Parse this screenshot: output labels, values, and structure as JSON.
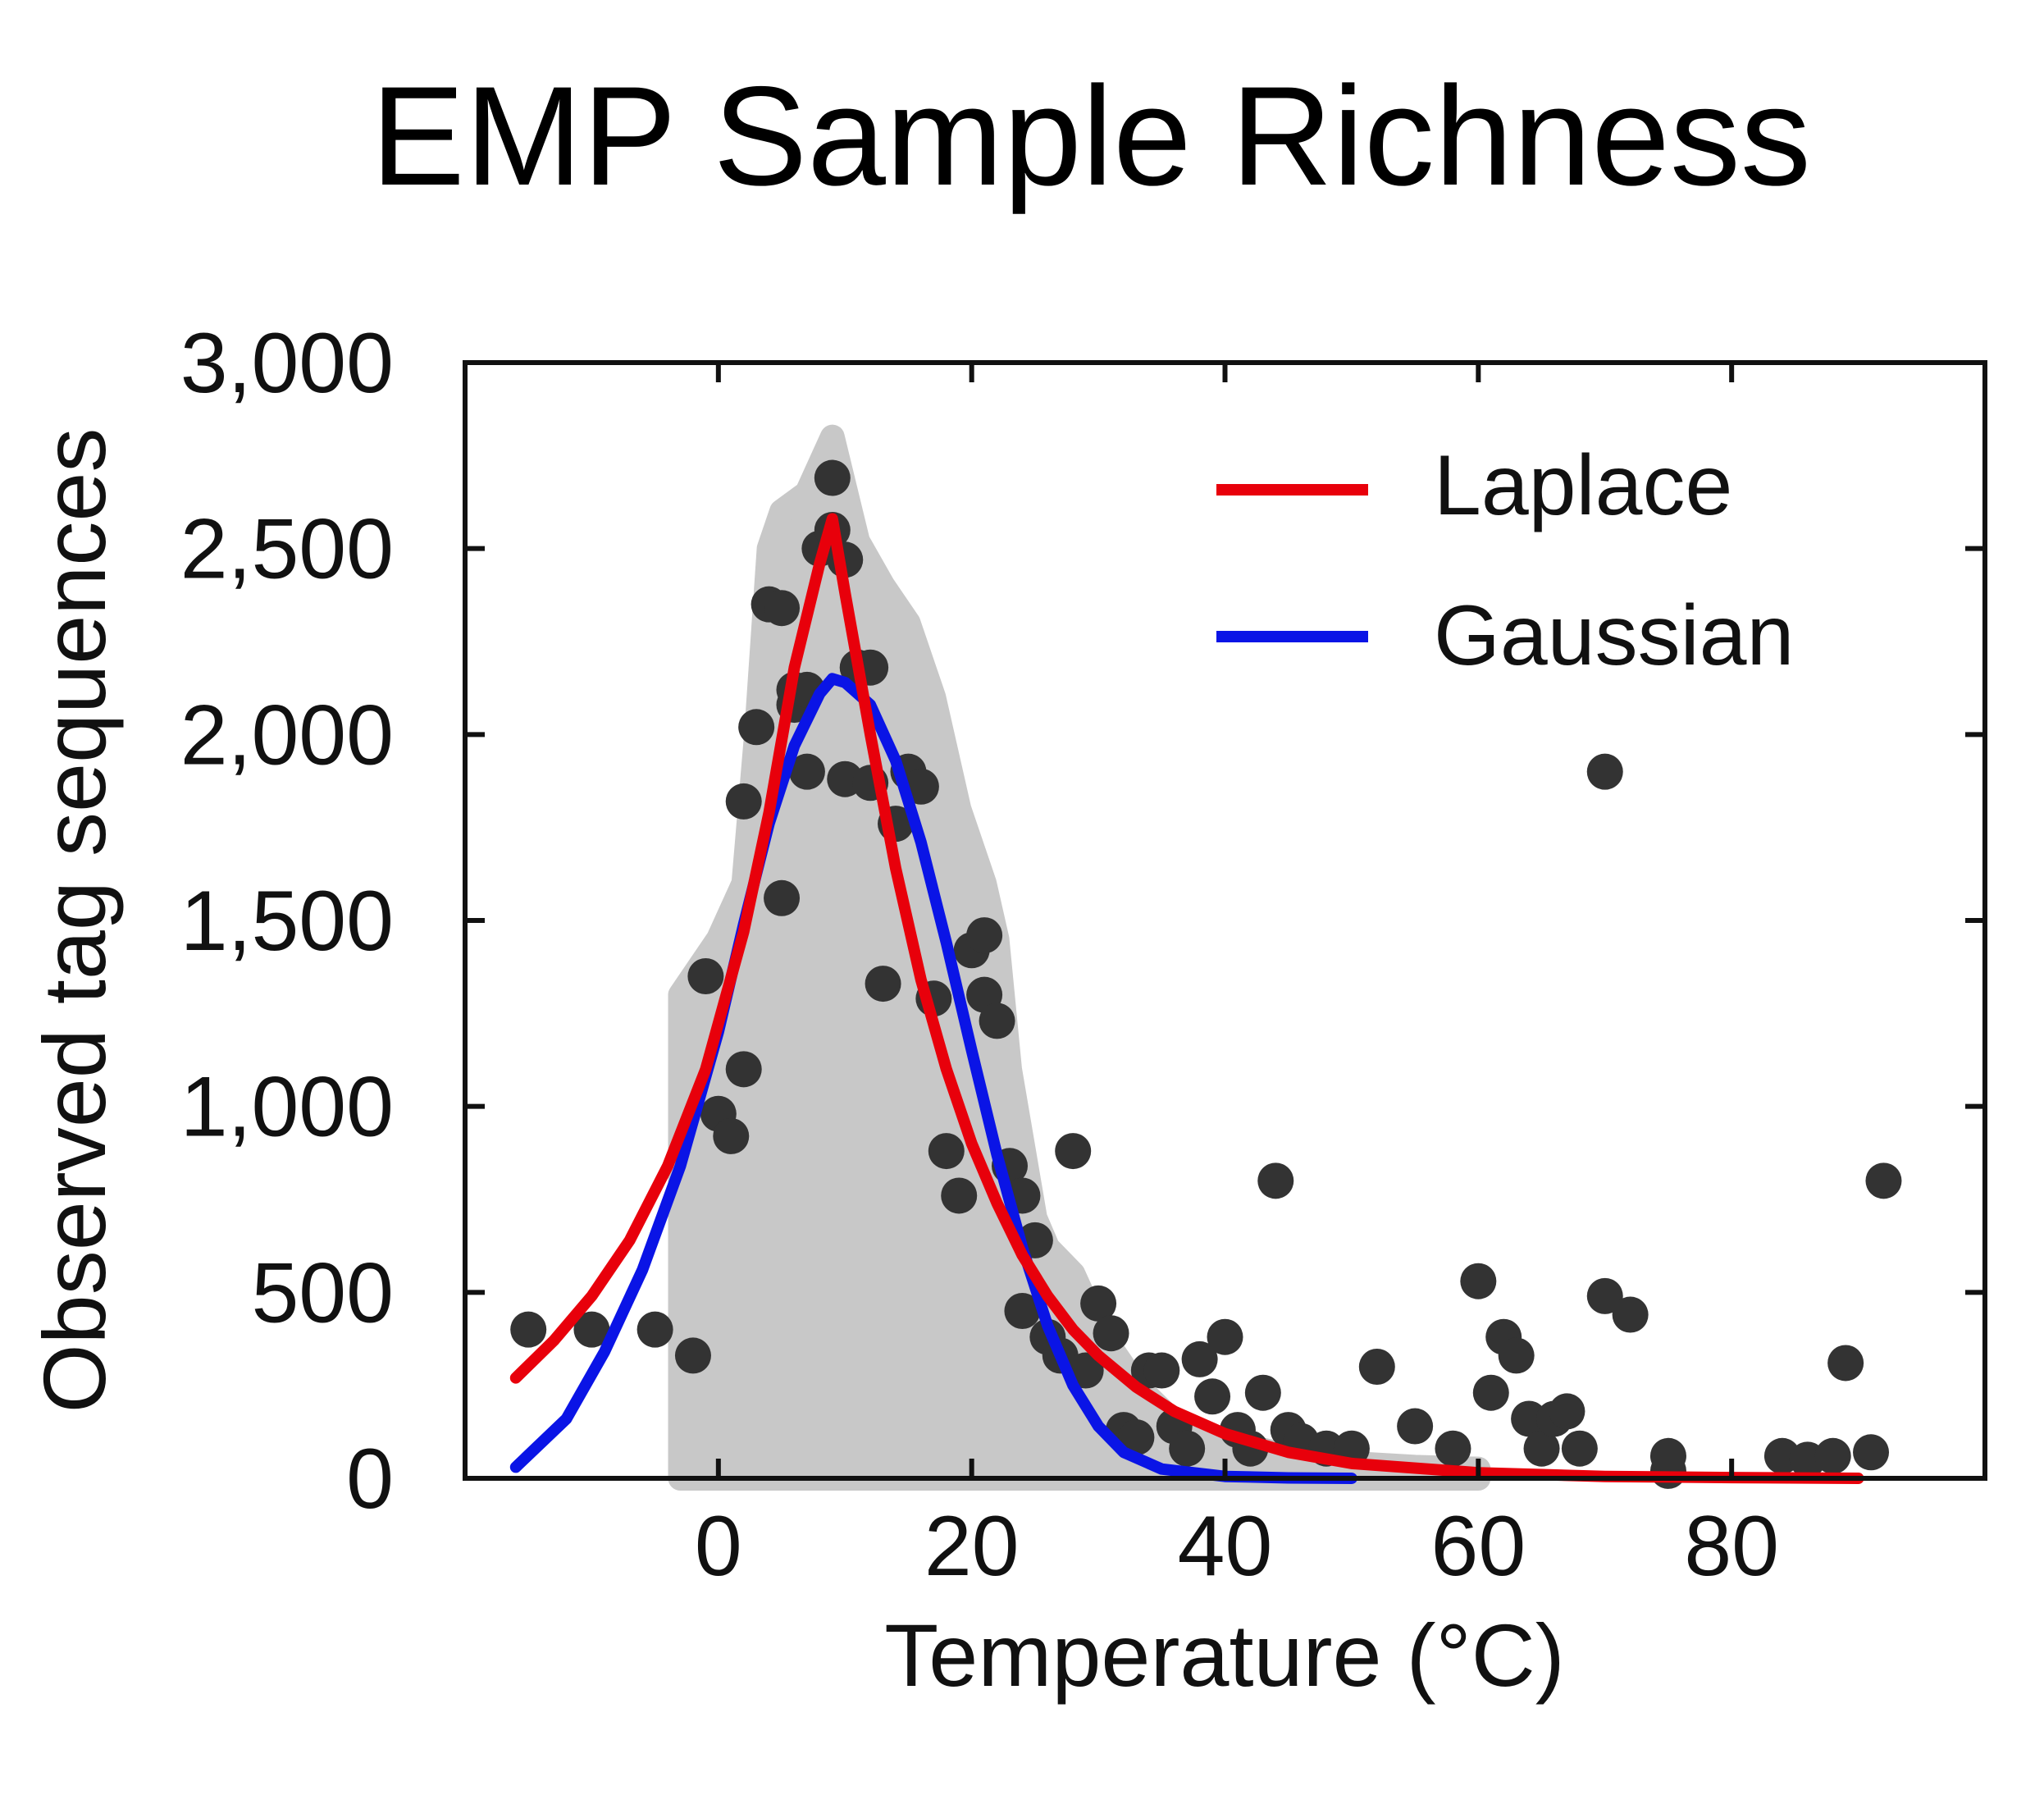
{
  "chart_data": {
    "type": "scatter",
    "title": "EMP Sample Richness",
    "xlabel": "Temperature (°C)",
    "ylabel": "Observed tag sequences",
    "xlim": [
      -20,
      100
    ],
    "ylim": [
      0,
      3000
    ],
    "xticks": [
      0,
      20,
      40,
      60,
      80
    ],
    "xtick_labels": [
      "0",
      "20",
      "40",
      "60",
      "80"
    ],
    "yticks": [
      0,
      500,
      1000,
      1500,
      2000,
      2500,
      3000
    ],
    "ytick_labels": [
      "0",
      "500",
      "1,000",
      "1,500",
      "2,000",
      "2,500",
      "3,000"
    ],
    "grid": false,
    "legend_position": "top-right",
    "colors": {
      "all_samples": "#c8c8c8",
      "binned_points": "#333333",
      "laplace": "#e8000b",
      "gaussian": "#0a14e6"
    },
    "fill_envelope": [
      [
        -3,
        0
      ],
      [
        -3,
        1300
      ],
      [
        0,
        1450
      ],
      [
        2,
        1600
      ],
      [
        3,
        2000
      ],
      [
        4,
        2500
      ],
      [
        5,
        2600
      ],
      [
        7,
        2650
      ],
      [
        9,
        2800
      ],
      [
        11,
        2520
      ],
      [
        13,
        2400
      ],
      [
        15,
        2300
      ],
      [
        17,
        2100
      ],
      [
        19,
        1800
      ],
      [
        21,
        1600
      ],
      [
        22,
        1450
      ],
      [
        23,
        1100
      ],
      [
        24,
        900
      ],
      [
        25,
        700
      ],
      [
        26,
        620
      ],
      [
        28,
        550
      ],
      [
        30,
        400
      ],
      [
        33,
        250
      ],
      [
        36,
        150
      ],
      [
        40,
        100
      ],
      [
        45,
        60
      ],
      [
        50,
        40
      ],
      [
        55,
        30
      ],
      [
        60,
        25
      ],
      [
        60,
        0
      ]
    ],
    "series": [
      {
        "name": "Laplace",
        "type": "line",
        "x": [
          -16,
          -13,
          -10,
          -7,
          -4,
          -1,
          2,
          4,
          6,
          8,
          9,
          10,
          12,
          14,
          16,
          18,
          20,
          22,
          24,
          26,
          28,
          30,
          33,
          36,
          40,
          45,
          50,
          60,
          70,
          80,
          90
        ],
        "y": [
          270,
          370,
          490,
          640,
          840,
          1100,
          1470,
          1790,
          2180,
          2460,
          2580,
          2380,
          2000,
          1640,
          1340,
          1100,
          900,
          740,
          600,
          490,
          400,
          330,
          245,
          180,
          120,
          70,
          40,
          15,
          5,
          2,
          0
        ]
      },
      {
        "name": "Gaussian",
        "type": "line",
        "x": [
          -16,
          -12,
          -9,
          -6,
          -3,
          0,
          2,
          4,
          6,
          8,
          9,
          10,
          12,
          14,
          16,
          18,
          20,
          22,
          24,
          26,
          28,
          30,
          32,
          35,
          40,
          45,
          50
        ],
        "y": [
          30,
          160,
          340,
          560,
          840,
          1200,
          1490,
          1760,
          1970,
          2110,
          2150,
          2140,
          2080,
          1930,
          1710,
          1440,
          1150,
          870,
          620,
          410,
          250,
          140,
          70,
          25,
          5,
          1,
          0
        ]
      },
      {
        "type": "scatter",
        "x": [
          -15,
          -10,
          -5,
          -2,
          -1,
          0,
          1,
          2,
          2,
          3,
          4,
          5,
          5,
          6,
          6,
          7,
          7,
          8,
          9,
          9,
          10,
          10,
          11,
          12,
          12,
          13,
          14,
          15,
          16,
          17,
          18,
          19,
          20,
          21,
          21,
          22,
          23,
          24,
          24,
          25,
          26,
          27,
          28,
          29,
          30,
          31,
          32,
          33,
          34,
          35,
          36,
          37,
          38,
          39,
          40,
          41,
          42,
          43,
          44,
          45,
          46,
          48,
          50,
          52,
          55,
          58,
          60,
          61,
          62,
          63,
          64,
          65,
          66,
          67,
          68,
          70,
          70,
          72,
          75,
          75,
          84,
          86,
          88,
          89,
          91,
          92
        ],
        "y": [
          400,
          400,
          400,
          330,
          1350,
          980,
          920,
          1100,
          1820,
          2020,
          2350,
          1560,
          2340,
          2120,
          2080,
          1900,
          2120,
          2500,
          2690,
          2550,
          1880,
          2470,
          2180,
          1870,
          2180,
          1330,
          1760,
          1900,
          1860,
          1290,
          880,
          760,
          1420,
          1460,
          1300,
          1230,
          840,
          760,
          450,
          640,
          380,
          330,
          880,
          290,
          470,
          390,
          130,
          110,
          290,
          290,
          140,
          80,
          320,
          220,
          380,
          130,
          80,
          230,
          800,
          130,
          100,
          80,
          80,
          300,
          140,
          80,
          530,
          230,
          380,
          330,
          160,
          80,
          160,
          180,
          80,
          1900,
          490,
          440,
          20,
          60,
          60,
          50,
          60,
          310,
          70,
          800
        ]
      }
    ]
  }
}
